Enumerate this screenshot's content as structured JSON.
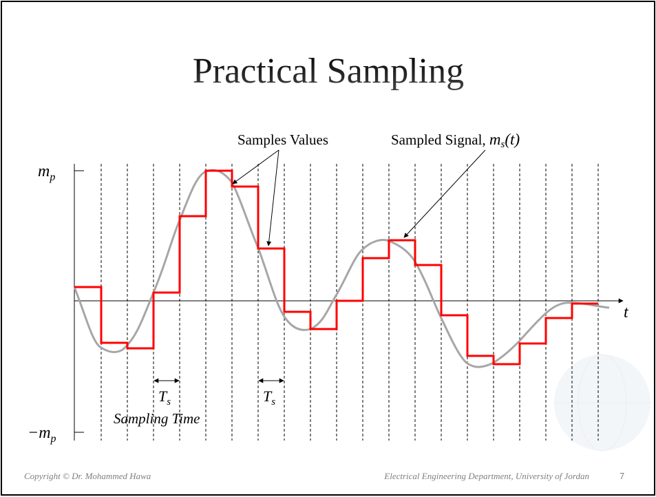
{
  "title": "Practical Sampling",
  "labels": {
    "samples_values": "Samples Values",
    "sampled_signal": {
      "text": "Sampled Signal,",
      "symbol": "m",
      "sub": "s",
      "arg": "(t)"
    },
    "m_p": {
      "symbol": "m",
      "sub": "p"
    },
    "minus_m_p": {
      "symbol": "−m",
      "sub": "p"
    },
    "t": "t",
    "ts_1": {
      "symbol": "T",
      "sub": "s"
    },
    "ts_2": {
      "symbol": "T",
      "sub": "s"
    },
    "sampling_time": "Sampling Time"
  },
  "footer": {
    "copyright": "Copyright © Dr. Mohammed Hawa",
    "department": "Electrical Engineering Department, University of Jordan",
    "page": "7"
  }
}
